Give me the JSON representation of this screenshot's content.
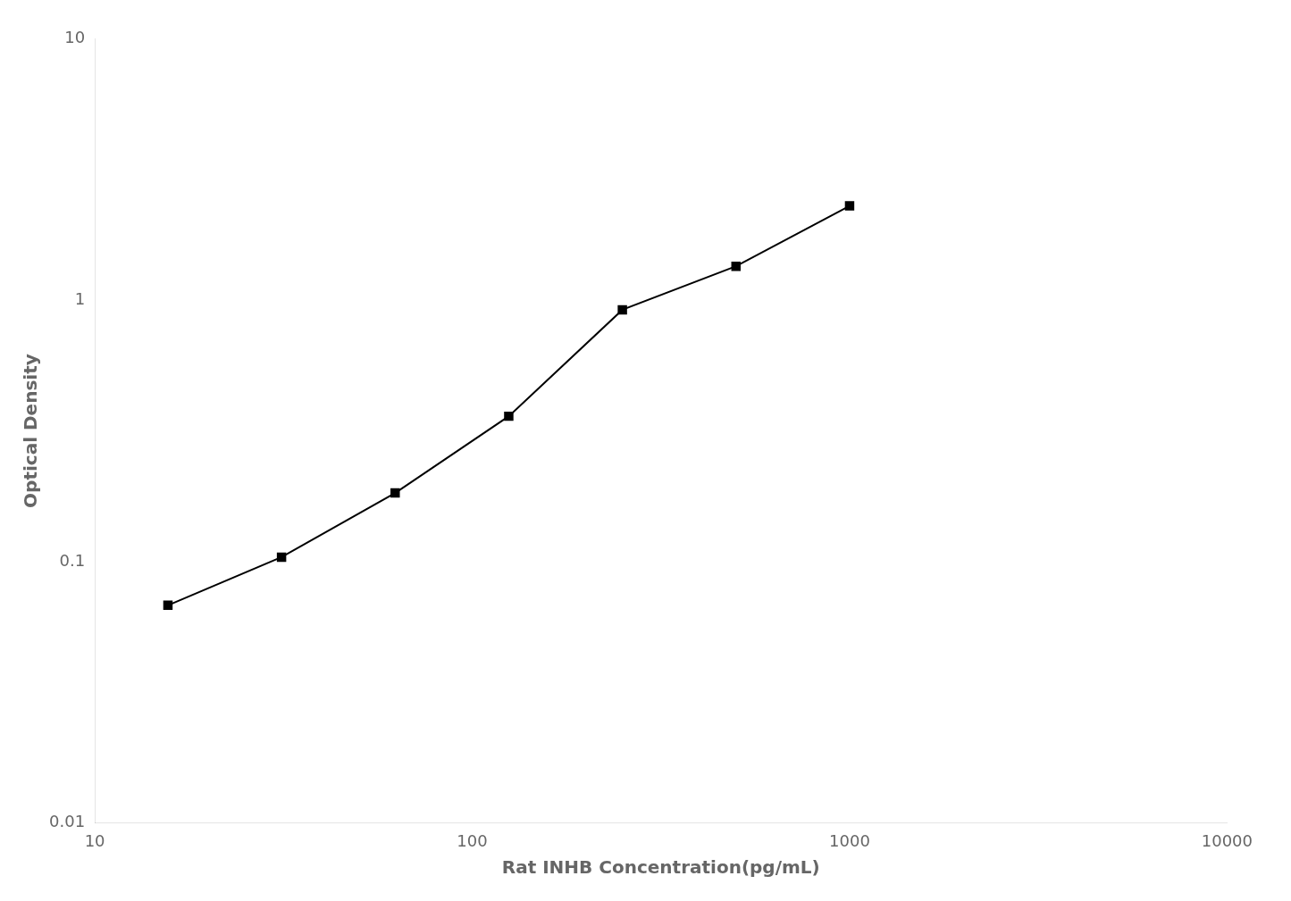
{
  "chart_data": {
    "type": "line",
    "x": [
      15.625,
      31.25,
      62.5,
      125,
      250,
      500,
      1000
    ],
    "values": [
      0.068,
      0.104,
      0.183,
      0.36,
      0.92,
      1.35,
      2.3
    ],
    "xlabel": "Rat INHB Concentration(pg/mL)",
    "ylabel": "Optical Density",
    "xlim": [
      10,
      10000
    ],
    "ylim": [
      0.01,
      10
    ],
    "xticks": [
      10,
      100,
      1000,
      10000
    ],
    "yticks": [
      0.01,
      0.1,
      1,
      10
    ],
    "log": true,
    "grid": false,
    "color": "#000000",
    "marker": "square"
  }
}
